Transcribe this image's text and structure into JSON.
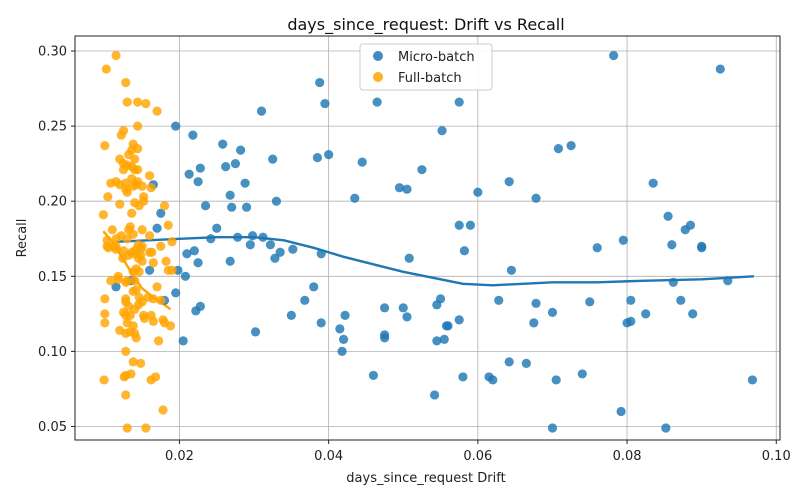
{
  "chart_data": {
    "type": "scatter",
    "title": "days_since_request: Drift vs Recall",
    "xlabel": "days_since_request Drift",
    "ylabel": "Recall",
    "xlim": [
      0.006,
      0.1005
    ],
    "ylim": [
      0.041,
      0.31
    ],
    "xticks": [
      0.02,
      0.04,
      0.06,
      0.08,
      0.1
    ],
    "xtick_labels": [
      "0.02",
      "0.04",
      "0.06",
      "0.08",
      "0.10"
    ],
    "yticks": [
      0.05,
      0.1,
      0.15,
      0.2,
      0.25,
      0.3
    ],
    "ytick_labels": [
      "0.05",
      "0.10",
      "0.15",
      "0.20",
      "0.25",
      "0.30"
    ],
    "grid": true,
    "legend_position": "top-center",
    "series": [
      {
        "name": "Micro-batch",
        "color": "#1f77b4",
        "points": [
          [
            0.0115,
            0.143
          ],
          [
            0.0135,
            0.147
          ],
          [
            0.016,
            0.154
          ],
          [
            0.0165,
            0.211
          ],
          [
            0.017,
            0.182
          ],
          [
            0.0175,
            0.192
          ],
          [
            0.018,
            0.134
          ],
          [
            0.0195,
            0.25
          ],
          [
            0.0195,
            0.139
          ],
          [
            0.0198,
            0.154
          ],
          [
            0.0205,
            0.107
          ],
          [
            0.0208,
            0.15
          ],
          [
            0.021,
            0.165
          ],
          [
            0.0213,
            0.218
          ],
          [
            0.0218,
            0.244
          ],
          [
            0.022,
            0.167
          ],
          [
            0.0222,
            0.127
          ],
          [
            0.0225,
            0.213
          ],
          [
            0.0225,
            0.159
          ],
          [
            0.0228,
            0.222
          ],
          [
            0.0228,
            0.13
          ],
          [
            0.0235,
            0.197
          ],
          [
            0.0242,
            0.175
          ],
          [
            0.025,
            0.182
          ],
          [
            0.0258,
            0.238
          ],
          [
            0.0262,
            0.223
          ],
          [
            0.0268,
            0.204
          ],
          [
            0.0268,
            0.16
          ],
          [
            0.027,
            0.196
          ],
          [
            0.0275,
            0.225
          ],
          [
            0.0278,
            0.176
          ],
          [
            0.0282,
            0.234
          ],
          [
            0.0288,
            0.212
          ],
          [
            0.029,
            0.196
          ],
          [
            0.0295,
            0.171
          ],
          [
            0.0298,
            0.177
          ],
          [
            0.0302,
            0.113
          ],
          [
            0.031,
            0.26
          ],
          [
            0.0312,
            0.176
          ],
          [
            0.0322,
            0.171
          ],
          [
            0.0325,
            0.228
          ],
          [
            0.0328,
            0.162
          ],
          [
            0.033,
            0.2
          ],
          [
            0.0335,
            0.166
          ],
          [
            0.035,
            0.124
          ],
          [
            0.0352,
            0.168
          ],
          [
            0.0368,
            0.134
          ],
          [
            0.038,
            0.143
          ],
          [
            0.0385,
            0.229
          ],
          [
            0.0388,
            0.279
          ],
          [
            0.039,
            0.165
          ],
          [
            0.039,
            0.119
          ],
          [
            0.0395,
            0.265
          ],
          [
            0.04,
            0.231
          ],
          [
            0.0415,
            0.115
          ],
          [
            0.0418,
            0.1
          ],
          [
            0.042,
            0.108
          ],
          [
            0.0422,
            0.124
          ],
          [
            0.0435,
            0.202
          ],
          [
            0.0445,
            0.226
          ],
          [
            0.046,
            0.084
          ],
          [
            0.0465,
            0.266
          ],
          [
            0.0475,
            0.129
          ],
          [
            0.0475,
            0.111
          ],
          [
            0.0475,
            0.109
          ],
          [
            0.0495,
            0.209
          ],
          [
            0.05,
            0.129
          ],
          [
            0.0505,
            0.208
          ],
          [
            0.0505,
            0.123
          ],
          [
            0.0508,
            0.162
          ],
          [
            0.0525,
            0.221
          ],
          [
            0.0542,
            0.071
          ],
          [
            0.0545,
            0.107
          ],
          [
            0.0545,
            0.131
          ],
          [
            0.055,
            0.135
          ],
          [
            0.0552,
            0.247
          ],
          [
            0.0555,
            0.108
          ],
          [
            0.0558,
            0.117
          ],
          [
            0.056,
            0.117
          ],
          [
            0.0575,
            0.266
          ],
          [
            0.0575,
            0.184
          ],
          [
            0.0575,
            0.121
          ],
          [
            0.058,
            0.083
          ],
          [
            0.0582,
            0.167
          ],
          [
            0.059,
            0.184
          ],
          [
            0.06,
            0.206
          ],
          [
            0.0615,
            0.083
          ],
          [
            0.062,
            0.081
          ],
          [
            0.0628,
            0.134
          ],
          [
            0.0642,
            0.213
          ],
          [
            0.0642,
            0.093
          ],
          [
            0.0645,
            0.154
          ],
          [
            0.0665,
            0.092
          ],
          [
            0.0675,
            0.119
          ],
          [
            0.0678,
            0.132
          ],
          [
            0.0678,
            0.202
          ],
          [
            0.07,
            0.126
          ],
          [
            0.07,
            0.049
          ],
          [
            0.0705,
            0.081
          ],
          [
            0.0708,
            0.235
          ],
          [
            0.0725,
            0.237
          ],
          [
            0.074,
            0.085
          ],
          [
            0.075,
            0.133
          ],
          [
            0.076,
            0.169
          ],
          [
            0.0782,
            0.297
          ],
          [
            0.0792,
            0.06
          ],
          [
            0.0795,
            0.174
          ],
          [
            0.08,
            0.119
          ],
          [
            0.0805,
            0.12
          ],
          [
            0.0805,
            0.134
          ],
          [
            0.0825,
            0.125
          ],
          [
            0.0835,
            0.212
          ],
          [
            0.0852,
            0.049
          ],
          [
            0.0855,
            0.19
          ],
          [
            0.086,
            0.171
          ],
          [
            0.0862,
            0.146
          ],
          [
            0.0872,
            0.134
          ],
          [
            0.0878,
            0.181
          ],
          [
            0.0885,
            0.184
          ],
          [
            0.0888,
            0.125
          ],
          [
            0.09,
            0.169
          ],
          [
            0.09,
            0.17
          ],
          [
            0.0925,
            0.288
          ],
          [
            0.0935,
            0.147
          ],
          [
            0.0968,
            0.081
          ]
        ],
        "trend": [
          [
            0.0115,
            0.173
          ],
          [
            0.02,
            0.175
          ],
          [
            0.025,
            0.176
          ],
          [
            0.03,
            0.176
          ],
          [
            0.034,
            0.174
          ],
          [
            0.038,
            0.169
          ],
          [
            0.042,
            0.163
          ],
          [
            0.046,
            0.158
          ],
          [
            0.05,
            0.153
          ],
          [
            0.054,
            0.149
          ],
          [
            0.058,
            0.145
          ],
          [
            0.062,
            0.144
          ],
          [
            0.066,
            0.145
          ],
          [
            0.07,
            0.146
          ],
          [
            0.076,
            0.146
          ],
          [
            0.082,
            0.147
          ],
          [
            0.09,
            0.148
          ],
          [
            0.097,
            0.15
          ]
        ]
      },
      {
        "name": "Full-batch",
        "color": "#ffa500",
        "points": [
          [
            0.0102,
            0.288
          ],
          [
            0.01,
            0.237
          ],
          [
            0.0098,
            0.191
          ],
          [
            0.01,
            0.135
          ],
          [
            0.01,
            0.125
          ],
          [
            0.01,
            0.119
          ],
          [
            0.0099,
            0.081
          ],
          [
            0.0103,
            0.174
          ],
          [
            0.0103,
            0.17
          ],
          [
            0.0104,
            0.203
          ],
          [
            0.0105,
            0.169
          ],
          [
            0.0108,
            0.212
          ],
          [
            0.0108,
            0.147
          ],
          [
            0.011,
            0.181
          ],
          [
            0.0112,
            0.17
          ],
          [
            0.0115,
            0.297
          ],
          [
            0.0115,
            0.213
          ],
          [
            0.0115,
            0.175
          ],
          [
            0.0115,
            0.17
          ],
          [
            0.0115,
            0.168
          ],
          [
            0.0118,
            0.15
          ],
          [
            0.0118,
            0.148
          ],
          [
            0.012,
            0.114
          ],
          [
            0.012,
            0.228
          ],
          [
            0.012,
            0.211
          ],
          [
            0.012,
            0.198
          ],
          [
            0.0122,
            0.244
          ],
          [
            0.0122,
            0.177
          ],
          [
            0.0124,
            0.162
          ],
          [
            0.0125,
            0.247
          ],
          [
            0.0125,
            0.225
          ],
          [
            0.0125,
            0.221
          ],
          [
            0.0125,
            0.167
          ],
          [
            0.0125,
            0.126
          ],
          [
            0.0126,
            0.083
          ],
          [
            0.0128,
            0.279
          ],
          [
            0.0128,
            0.212
          ],
          [
            0.0128,
            0.208
          ],
          [
            0.0128,
            0.146
          ],
          [
            0.0128,
            0.135
          ],
          [
            0.0128,
            0.133
          ],
          [
            0.0128,
            0.124
          ],
          [
            0.0128,
            0.112
          ],
          [
            0.0128,
            0.1
          ],
          [
            0.0128,
            0.084
          ],
          [
            0.0128,
            0.071
          ],
          [
            0.013,
            0.266
          ],
          [
            0.013,
            0.224
          ],
          [
            0.013,
            0.206
          ],
          [
            0.013,
            0.175
          ],
          [
            0.013,
            0.147
          ],
          [
            0.013,
            0.119
          ],
          [
            0.013,
            0.049
          ],
          [
            0.0132,
            0.231
          ],
          [
            0.0132,
            0.181
          ],
          [
            0.0132,
            0.164
          ],
          [
            0.0132,
            0.13
          ],
          [
            0.0134,
            0.183
          ],
          [
            0.0134,
            0.124
          ],
          [
            0.0134,
            0.113
          ],
          [
            0.0135,
            0.085
          ],
          [
            0.0136,
            0.234
          ],
          [
            0.0136,
            0.223
          ],
          [
            0.0136,
            0.215
          ],
          [
            0.0136,
            0.192
          ],
          [
            0.0136,
            0.166
          ],
          [
            0.0138,
            0.238
          ],
          [
            0.0138,
            0.21
          ],
          [
            0.0138,
            0.178
          ],
          [
            0.0138,
            0.153
          ],
          [
            0.0138,
            0.14
          ],
          [
            0.0138,
            0.117
          ],
          [
            0.0138,
            0.093
          ],
          [
            0.014,
            0.228
          ],
          [
            0.014,
            0.221
          ],
          [
            0.014,
            0.199
          ],
          [
            0.014,
            0.165
          ],
          [
            0.014,
            0.147
          ],
          [
            0.014,
            0.128
          ],
          [
            0.014,
            0.112
          ],
          [
            0.0142,
            0.211
          ],
          [
            0.0142,
            0.168
          ],
          [
            0.0142,
            0.155
          ],
          [
            0.0142,
            0.141
          ],
          [
            0.0142,
            0.109
          ],
          [
            0.0144,
            0.266
          ],
          [
            0.0144,
            0.25
          ],
          [
            0.0144,
            0.235
          ],
          [
            0.0144,
            0.221
          ],
          [
            0.0144,
            0.213
          ],
          [
            0.0145,
            0.171
          ],
          [
            0.0145,
            0.162
          ],
          [
            0.0145,
            0.131
          ],
          [
            0.0146,
            0.197
          ],
          [
            0.0146,
            0.153
          ],
          [
            0.0146,
            0.136
          ],
          [
            0.0148,
            0.168
          ],
          [
            0.0148,
            0.164
          ],
          [
            0.0148,
            0.092
          ],
          [
            0.015,
            0.21
          ],
          [
            0.015,
            0.181
          ],
          [
            0.015,
            0.17
          ],
          [
            0.015,
            0.16
          ],
          [
            0.015,
            0.133
          ],
          [
            0.0152,
            0.203
          ],
          [
            0.0152,
            0.2
          ],
          [
            0.0152,
            0.124
          ],
          [
            0.0153,
            0.122
          ],
          [
            0.0155,
            0.265
          ],
          [
            0.0155,
            0.049
          ],
          [
            0.0158,
            0.136
          ],
          [
            0.016,
            0.217
          ],
          [
            0.016,
            0.177
          ],
          [
            0.016,
            0.166
          ],
          [
            0.0162,
            0.209
          ],
          [
            0.0162,
            0.124
          ],
          [
            0.0162,
            0.081
          ],
          [
            0.0163,
            0.166
          ],
          [
            0.0165,
            0.159
          ],
          [
            0.0165,
            0.135
          ],
          [
            0.0165,
            0.12
          ],
          [
            0.0168,
            0.083
          ],
          [
            0.017,
            0.26
          ],
          [
            0.017,
            0.143
          ],
          [
            0.0172,
            0.107
          ],
          [
            0.0175,
            0.17
          ],
          [
            0.0175,
            0.134
          ],
          [
            0.0178,
            0.121
          ],
          [
            0.0178,
            0.061
          ],
          [
            0.018,
            0.197
          ],
          [
            0.018,
            0.119
          ],
          [
            0.0182,
            0.16
          ],
          [
            0.0185,
            0.184
          ],
          [
            0.0185,
            0.154
          ],
          [
            0.0188,
            0.117
          ],
          [
            0.019,
            0.154
          ],
          [
            0.019,
            0.173
          ]
        ],
        "trend": [
          [
            0.0098,
            0.18
          ],
          [
            0.011,
            0.173
          ],
          [
            0.012,
            0.165
          ],
          [
            0.013,
            0.157
          ],
          [
            0.014,
            0.149
          ],
          [
            0.015,
            0.142
          ],
          [
            0.016,
            0.138
          ],
          [
            0.017,
            0.134
          ],
          [
            0.018,
            0.131
          ],
          [
            0.0188,
            0.128
          ]
        ]
      }
    ]
  }
}
